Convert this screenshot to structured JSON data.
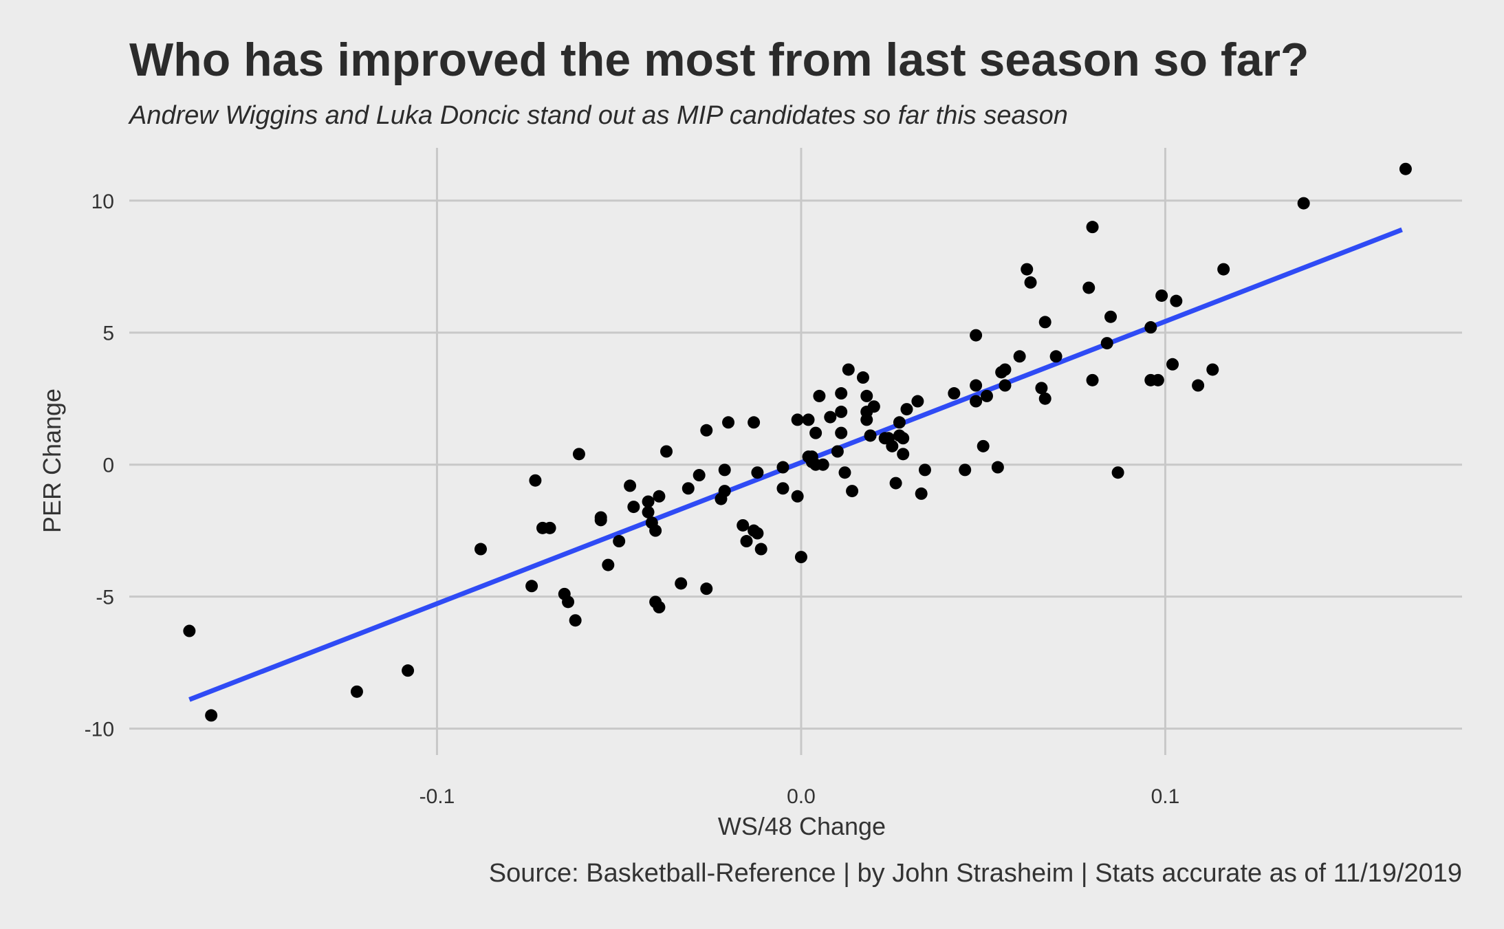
{
  "chart_data": {
    "type": "scatter",
    "title": "Who has improved the most from last season so far?",
    "subtitle": "Andrew Wiggins and Luka Doncic stand out as MIP candidates so far this season",
    "xlabel": "WS/48 Change",
    "ylabel": "PER Change",
    "caption": "Source:  Basketball-Reference | by John Strasheim | Stats accurate as of 11/19/2019",
    "xlim": [
      -0.1845,
      0.1815
    ],
    "ylim": [
      -11.0,
      12.0
    ],
    "x_ticks": [
      -0.1,
      0.0,
      0.1
    ],
    "x_tick_labels": [
      "-0.1",
      "0.0",
      "0.1"
    ],
    "y_ticks": [
      -10,
      -5,
      0,
      5,
      10
    ],
    "y_tick_labels": [
      "-10",
      "-5",
      "0",
      "5",
      "10"
    ],
    "grid": true,
    "point_color": "#000000",
    "trend_color": "#2f4bf5",
    "trend_line": {
      "x": [
        -0.168,
        0.165
      ],
      "y": [
        -8.9,
        8.9
      ]
    },
    "points": [
      [
        -0.168,
        -6.3
      ],
      [
        -0.162,
        -9.5
      ],
      [
        -0.122,
        -8.6
      ],
      [
        -0.108,
        -7.8
      ],
      [
        -0.088,
        -3.2
      ],
      [
        -0.074,
        -4.6
      ],
      [
        -0.073,
        -0.6
      ],
      [
        -0.071,
        -2.4
      ],
      [
        -0.069,
        -2.4
      ],
      [
        -0.065,
        -4.9
      ],
      [
        -0.064,
        -5.2
      ],
      [
        -0.062,
        -5.9
      ],
      [
        -0.061,
        0.4
      ],
      [
        -0.055,
        -2.0
      ],
      [
        -0.055,
        -2.1
      ],
      [
        -0.053,
        -3.8
      ],
      [
        -0.05,
        -2.9
      ],
      [
        -0.047,
        -0.8
      ],
      [
        -0.046,
        -1.6
      ],
      [
        -0.042,
        -1.4
      ],
      [
        -0.042,
        -1.8
      ],
      [
        -0.041,
        -2.2
      ],
      [
        -0.04,
        -2.5
      ],
      [
        -0.04,
        -5.2
      ],
      [
        -0.039,
        -5.4
      ],
      [
        -0.039,
        -1.2
      ],
      [
        -0.037,
        0.5
      ],
      [
        -0.033,
        -4.5
      ],
      [
        -0.031,
        -0.9
      ],
      [
        -0.028,
        -0.4
      ],
      [
        -0.026,
        1.3
      ],
      [
        -0.026,
        -4.7
      ],
      [
        -0.022,
        -1.3
      ],
      [
        -0.021,
        -0.2
      ],
      [
        -0.021,
        -1.0
      ],
      [
        -0.02,
        1.6
      ],
      [
        -0.016,
        -2.3
      ],
      [
        -0.015,
        -2.9
      ],
      [
        -0.013,
        1.6
      ],
      [
        -0.013,
        -2.5
      ],
      [
        -0.012,
        -2.6
      ],
      [
        -0.012,
        -0.3
      ],
      [
        -0.011,
        -3.2
      ],
      [
        -0.005,
        -0.1
      ],
      [
        -0.005,
        -0.9
      ],
      [
        -0.001,
        -1.2
      ],
      [
        -0.001,
        1.7
      ],
      [
        0.0,
        -3.5
      ],
      [
        0.002,
        0.3
      ],
      [
        0.002,
        1.7
      ],
      [
        0.003,
        0.3
      ],
      [
        0.003,
        0.1
      ],
      [
        0.004,
        0.0
      ],
      [
        0.004,
        1.2
      ],
      [
        0.005,
        2.6
      ],
      [
        0.006,
        0.0
      ],
      [
        0.008,
        1.8
      ],
      [
        0.01,
        0.5
      ],
      [
        0.011,
        1.2
      ],
      [
        0.011,
        2.0
      ],
      [
        0.011,
        2.7
      ],
      [
        0.012,
        -0.3
      ],
      [
        0.013,
        3.6
      ],
      [
        0.014,
        -1.0
      ],
      [
        0.017,
        3.3
      ],
      [
        0.018,
        1.7
      ],
      [
        0.018,
        2.0
      ],
      [
        0.018,
        2.6
      ],
      [
        0.019,
        1.1
      ],
      [
        0.02,
        2.2
      ],
      [
        0.023,
        1.0
      ],
      [
        0.024,
        1.0
      ],
      [
        0.025,
        0.7
      ],
      [
        0.026,
        -0.7
      ],
      [
        0.027,
        1.1
      ],
      [
        0.027,
        1.6
      ],
      [
        0.028,
        0.4
      ],
      [
        0.028,
        1.0
      ],
      [
        0.029,
        2.1
      ],
      [
        0.032,
        2.4
      ],
      [
        0.033,
        -1.1
      ],
      [
        0.034,
        -0.2
      ],
      [
        0.042,
        2.7
      ],
      [
        0.045,
        -0.2
      ],
      [
        0.048,
        4.9
      ],
      [
        0.048,
        2.4
      ],
      [
        0.048,
        3.0
      ],
      [
        0.05,
        0.7
      ],
      [
        0.051,
        2.6
      ],
      [
        0.054,
        -0.1
      ],
      [
        0.055,
        3.5
      ],
      [
        0.056,
        3.6
      ],
      [
        0.056,
        3.0
      ],
      [
        0.06,
        4.1
      ],
      [
        0.062,
        7.4
      ],
      [
        0.063,
        6.9
      ],
      [
        0.066,
        2.9
      ],
      [
        0.067,
        2.5
      ],
      [
        0.067,
        5.4
      ],
      [
        0.07,
        4.1
      ],
      [
        0.079,
        6.7
      ],
      [
        0.08,
        3.2
      ],
      [
        0.08,
        9.0
      ],
      [
        0.084,
        4.6
      ],
      [
        0.085,
        5.6
      ],
      [
        0.087,
        -0.3
      ],
      [
        0.096,
        5.2
      ],
      [
        0.096,
        3.2
      ],
      [
        0.098,
        3.2
      ],
      [
        0.099,
        6.4
      ],
      [
        0.102,
        3.8
      ],
      [
        0.103,
        6.2
      ],
      [
        0.109,
        3.0
      ],
      [
        0.113,
        3.6
      ],
      [
        0.116,
        7.4
      ],
      [
        0.138,
        9.9
      ],
      [
        0.166,
        11.2
      ]
    ]
  }
}
